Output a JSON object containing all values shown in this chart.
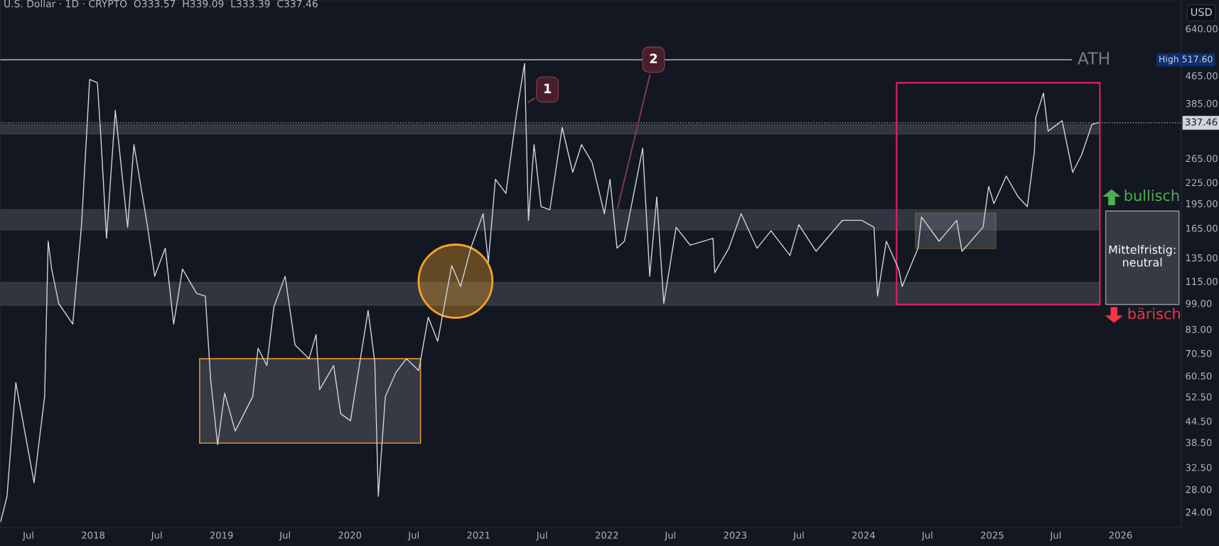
{
  "chart_data": {
    "type": "line",
    "title": "U.S. Dollar · 1D · CRYPTO  O333.57  H339.09  L333.39  C337.46",
    "ylabel": "USD",
    "log": true,
    "grid": false,
    "marker": "none",
    "line_style": "solid",
    "x": [
      "2017-04-13",
      "2017-05-01",
      "2017-05-26",
      "2017-07-17",
      "2017-08-16",
      "2017-08-26",
      "2017-09-05",
      "2017-09-25",
      "2017-11-04",
      "2017-11-29",
      "2017-12-22",
      "2018-01-13",
      "2018-01-23",
      "2018-02-08",
      "2018-03-05",
      "2018-04-09",
      "2018-04-27",
      "2018-06-05",
      "2018-06-25",
      "2018-07-25",
      "2018-08-18",
      "2018-09-12",
      "2018-10-22",
      "2018-11-16",
      "2018-12-01",
      "2018-12-21",
      "2019-01-10",
      "2019-02-09",
      "2019-03-31",
      "2019-04-15",
      "2019-05-10",
      "2019-05-30",
      "2019-07-01",
      "2019-07-29",
      "2019-09-07",
      "2019-09-27",
      "2019-10-07",
      "2019-11-16",
      "2019-12-06",
      "2020-01-03",
      "2020-02-22",
      "2020-03-12",
      "2020-03-22",
      "2020-04-11",
      "2020-05-11",
      "2020-06-10",
      "2020-07-15",
      "2020-08-11",
      "2020-09-07",
      "2020-10-17",
      "2020-11-11",
      "2020-12-10",
      "2021-01-14",
      "2021-01-29",
      "2021-02-18",
      "2021-03-20",
      "2021-04-19",
      "2021-05-12",
      "2021-05-23",
      "2021-06-08",
      "2021-06-28",
      "2021-07-23",
      "2021-08-27",
      "2021-09-26",
      "2021-10-21",
      "2021-11-20",
      "2021-12-25",
      "2022-01-10",
      "2022-01-30",
      "2022-02-20",
      "2022-04-13",
      "2022-05-03",
      "2022-05-23",
      "2022-06-12",
      "2022-07-17",
      "2022-08-26",
      "2022-10-30",
      "2022-11-04",
      "2022-12-14",
      "2023-01-18",
      "2023-03-04",
      "2023-04-13",
      "2023-06-06",
      "2023-07-01",
      "2023-08-19",
      "2023-11-02",
      "2023-12-27",
      "2024-01-31",
      "2024-02-10",
      "2024-03-06",
      "2024-04-10",
      "2024-04-20",
      "2024-06-04",
      "2024-06-14",
      "2024-08-03",
      "2024-09-22",
      "2024-10-07",
      "2024-12-06",
      "2024-12-22",
      "2025-01-06",
      "2025-02-10",
      "2025-03-16",
      "2025-04-11",
      "2025-05-01",
      "2025-05-05",
      "2025-05-27",
      "2025-06-09",
      "2025-07-19",
      "2025-08-18",
      "2025-09-12",
      "2025-10-12",
      "2025-10-30"
    ],
    "series": [
      {
        "color": "#d1d4dc",
        "values": [
          22.5,
          26.7,
          57.8,
          29.3,
          52.6,
          151,
          125,
          98.9,
          86,
          169,
          453,
          443,
          305,
          154,
          367,
          166,
          291,
          166,
          119,
          144,
          86,
          125,
          106,
          104,
          59.1,
          37.9,
          53.8,
          41.6,
          52.6,
          73,
          64.9,
          96.7,
          119,
          74.7,
          68,
          80.1,
          55.1,
          64.9,
          46.8,
          44.6,
          94.4,
          66.5,
          26.7,
          52.6,
          61.9,
          68,
          62.7,
          90.1,
          76.5,
          128,
          111,
          144,
          182,
          131,
          230,
          209,
          359,
          505,
          174,
          291,
          191,
          187,
          327,
          241,
          291,
          258,
          182,
          230,
          144,
          151,
          284,
          119,
          204,
          98.9,
          166,
          147,
          154,
          122,
          144,
          182,
          144,
          162,
          137,
          169,
          141,
          174,
          174,
          166,
          104,
          151,
          125,
          111,
          144,
          178,
          151,
          174,
          141,
          166,
          219,
          195,
          235,
          204,
          191,
          277,
          350,
          413,
          319,
          342,
          241,
          271,
          334,
          337.46
        ]
      }
    ],
    "xlim": [
      "2017-04-11",
      "2026-06-23"
    ],
    "xticks": [
      {
        "value": "2017-07-01",
        "label": "Jul"
      },
      {
        "value": "2018-01-01",
        "label": "2018"
      },
      {
        "value": "2018-07-01",
        "label": "Jul"
      },
      {
        "value": "2019-01-01",
        "label": "2019"
      },
      {
        "value": "2019-07-01",
        "label": "Jul"
      },
      {
        "value": "2020-01-01",
        "label": "2020"
      },
      {
        "value": "2020-07-01",
        "label": "Jul"
      },
      {
        "value": "2021-01-01",
        "label": "2021"
      },
      {
        "value": "2021-07-01",
        "label": "Jul"
      },
      {
        "value": "2022-01-01",
        "label": "2022"
      },
      {
        "value": "2022-07-01",
        "label": "Jul"
      },
      {
        "value": "2023-01-01",
        "label": "2023"
      },
      {
        "value": "2023-07-01",
        "label": "Jul"
      },
      {
        "value": "2024-01-01",
        "label": "2024"
      },
      {
        "value": "2024-07-01",
        "label": "Jul"
      },
      {
        "value": "2025-01-01",
        "label": "2025"
      },
      {
        "value": "2025-07-01",
        "label": "Jul"
      },
      {
        "value": "2026-01-01",
        "label": "2026"
      }
    ],
    "ylim": [
      21.6,
      777
    ],
    "yticks": [
      {
        "value": 24,
        "label": "24.00"
      },
      {
        "value": 28,
        "label": "28.00"
      },
      {
        "value": 32.5,
        "label": "32.50"
      },
      {
        "value": 38.5,
        "label": "38.50"
      },
      {
        "value": 44.5,
        "label": "44.50"
      },
      {
        "value": 52.5,
        "label": "52.50"
      },
      {
        "value": 60.5,
        "label": "60.50"
      },
      {
        "value": 70.5,
        "label": "70.50"
      },
      {
        "value": 83,
        "label": "83.00"
      },
      {
        "value": 99,
        "label": "99.00"
      },
      {
        "value": 115,
        "label": "115.00"
      },
      {
        "value": 135,
        "label": "135.00"
      },
      {
        "value": 165,
        "label": "165.00"
      },
      {
        "value": 195,
        "label": "195.00"
      },
      {
        "value": 225,
        "label": "225.00"
      },
      {
        "value": 265,
        "label": "265.00"
      },
      {
        "value": 385,
        "label": "385.00"
      },
      {
        "value": 465,
        "label": "465.00"
      },
      {
        "value": 640,
        "label": "640.00"
      }
    ],
    "bands": [
      {
        "axis": "y",
        "from": 313,
        "to": 333,
        "color": "#787b86"
      },
      {
        "axis": "y",
        "from": 163,
        "to": 187,
        "color": "#787b86"
      },
      {
        "axis": "y",
        "from": 97.8,
        "to": 114,
        "color": "#787b86"
      }
    ],
    "ref_lines": [
      {
        "axis": "y",
        "value": 517.6,
        "label": "ATH",
        "color": "#b2b5be",
        "line_style": "solid"
      },
      {
        "axis": "y",
        "value": 337.46,
        "label": "337.46",
        "color": "#9598a1",
        "line_style": "dotted"
      }
    ],
    "annotations": [
      {
        "text": "1",
        "x": "2021-05-18",
        "y": 385
      },
      {
        "text": "2",
        "x": "2022-01-30",
        "y": 186
      },
      "High 517.60",
      "bullisch",
      "Mittelfristig:\nneutral",
      "bärisch"
    ]
  }
}
